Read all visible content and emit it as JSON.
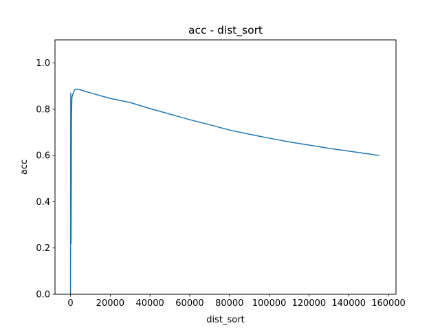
{
  "chart_data": {
    "type": "line",
    "title": "acc - dist_sort",
    "xlabel": "dist_sort",
    "ylabel": "acc",
    "xlim": [
      -7800,
      163800
    ],
    "ylim": [
      0,
      1.1
    ],
    "xticks": [
      0,
      20000,
      40000,
      60000,
      80000,
      100000,
      120000,
      140000,
      160000
    ],
    "xtick_labels": [
      "0",
      "20000",
      "40000",
      "60000",
      "80000",
      "100000",
      "120000",
      "140000",
      "160000"
    ],
    "yticks": [
      0.0,
      0.2,
      0.4,
      0.6,
      0.8,
      1.0
    ],
    "ytick_labels": [
      "0.0",
      "0.2",
      "0.4",
      "0.6",
      "0.8",
      "1.0"
    ],
    "grid": false,
    "legend": false,
    "series": [
      {
        "color": "#1f77b4",
        "points": [
          [
            1,
            0.0
          ],
          [
            60,
            0.6
          ],
          [
            120,
            0.87
          ],
          [
            200,
            0.3
          ],
          [
            300,
            0.22
          ],
          [
            400,
            0.45
          ],
          [
            500,
            0.76
          ],
          [
            700,
            0.85
          ],
          [
            1000,
            0.86
          ],
          [
            1400,
            0.87
          ],
          [
            2000,
            0.883
          ],
          [
            3000,
            0.887
          ],
          [
            5000,
            0.884
          ],
          [
            8000,
            0.876
          ],
          [
            12000,
            0.866
          ],
          [
            20000,
            0.847
          ],
          [
            30000,
            0.829
          ],
          [
            40000,
            0.803
          ],
          [
            50000,
            0.779
          ],
          [
            60000,
            0.755
          ],
          [
            70000,
            0.733
          ],
          [
            80000,
            0.71
          ],
          [
            90000,
            0.692
          ],
          [
            100000,
            0.675
          ],
          [
            110000,
            0.659
          ],
          [
            120000,
            0.645
          ],
          [
            130000,
            0.631
          ],
          [
            140000,
            0.619
          ],
          [
            150000,
            0.607
          ],
          [
            155500,
            0.6
          ]
        ]
      }
    ]
  }
}
